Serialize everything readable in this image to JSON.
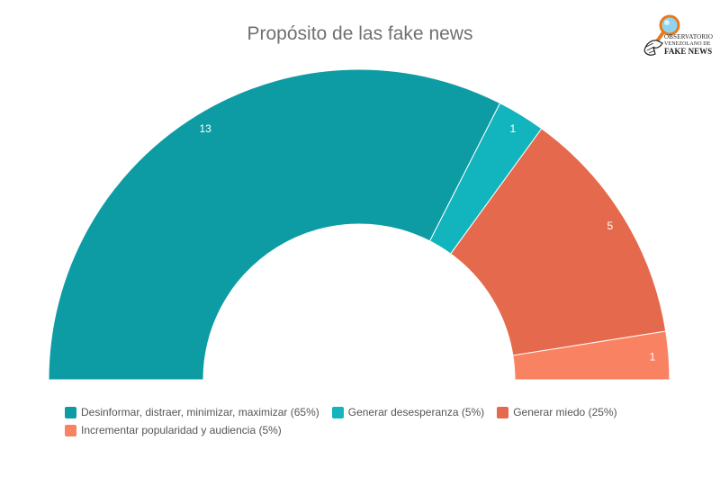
{
  "chart_data": {
    "type": "pie",
    "style": "semi-donut",
    "title": "Propósito de las fake news",
    "legend_position": "bottom-left",
    "slices": [
      {
        "name": "Desinformar, distraer, minimizar, maximizar",
        "value": 13,
        "percent_label": "(65%)",
        "color": "#0e9ca4"
      },
      {
        "name": "Generar desesperanza",
        "value": 1,
        "percent_label": "(5%)",
        "color": "#12b5be"
      },
      {
        "name": "Generar miedo",
        "value": 5,
        "percent_label": "(25%)",
        "color": "#e56a4d"
      },
      {
        "name": "Incrementar popularidad y audiencia",
        "value": 1,
        "percent_label": "(5%)",
        "color": "#f98262"
      }
    ]
  },
  "logo": {
    "line1": "OBSERVATORIO",
    "line2": "VENEZOLANO DE",
    "line3": "FAKE NEWS",
    "icon": "magnifying-glass-hand-icon"
  }
}
